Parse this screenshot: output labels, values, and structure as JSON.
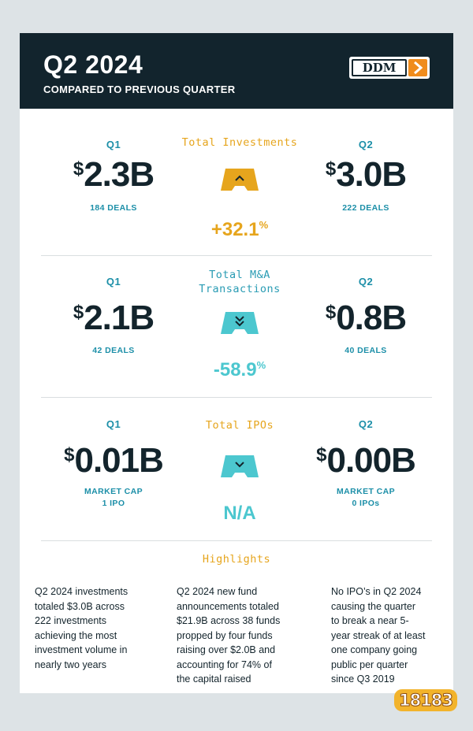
{
  "header": {
    "title": "Q2 2024",
    "subtitle": "COMPARED TO PREVIOUS QUARTER",
    "logo_text": "DDM"
  },
  "sections": [
    {
      "category": "Total Investments",
      "q1": {
        "label": "Q1",
        "value": "2.3B",
        "currency": "$",
        "detail": "184 DEALS"
      },
      "q2": {
        "label": "Q2",
        "value": "3.0B",
        "currency": "$",
        "detail": "222 DEALS"
      },
      "change": "+32.1",
      "change_unit": "%",
      "direction": "up",
      "icon": "chevron-up-icon"
    },
    {
      "category": "Total M&A Transactions",
      "category_line1": "Total M&A",
      "category_line2": "Transactions",
      "q1": {
        "label": "Q1",
        "value": "2.1B",
        "currency": "$",
        "detail": "42 DEALS"
      },
      "q2": {
        "label": "Q2",
        "value": "0.8B",
        "currency": "$",
        "detail": "40 DEALS"
      },
      "change": "-58.9",
      "change_unit": "%",
      "direction": "down",
      "icon": "double-chevron-down-icon"
    },
    {
      "category": "Total IPOs",
      "q1": {
        "label": "Q1",
        "value": "0.01B",
        "currency": "$",
        "detail_line1": "MARKET CAP",
        "detail_line2": "1 IPO"
      },
      "q2": {
        "label": "Q2",
        "value": "0.00B",
        "currency": "$",
        "detail_line1": "MARKET CAP",
        "detail_line2": "0 IPOs"
      },
      "change": "N/A",
      "direction": "down",
      "icon": "chevron-down-icon"
    }
  ],
  "highlights": {
    "title": "Highlights",
    "items": [
      [
        "Q2 2024 investments",
        "totaled $3.0B across",
        "222 investments",
        "achieving the most",
        "investment volume in",
        "nearly two years"
      ],
      [
        "Q2 2024 new fund",
        "announcements totaled",
        "$21.9B across 38 funds",
        "propped by four funds",
        "raising over $2.0B and",
        "accounting for 74% of",
        "the capital raised"
      ],
      [
        "No IPO’s in Q2 2024",
        "causing the quarter",
        "to break a near 5-",
        "year streak of at least",
        "one company going",
        "public per quarter",
        "since Q3 2019"
      ]
    ]
  },
  "watermark": "18183",
  "colors": {
    "navy": "#12242d",
    "gold": "#e6a51d",
    "teal": "#1c8fa8",
    "aqua": "#4cc7cf",
    "logo_orange": "#f08c1c"
  }
}
